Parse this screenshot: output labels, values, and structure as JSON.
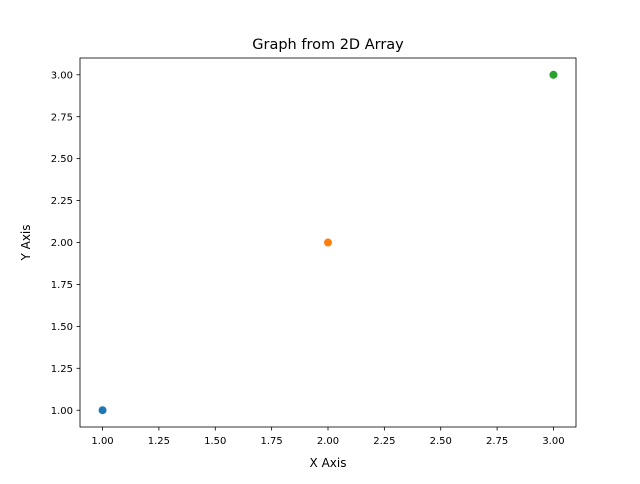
{
  "chart_data": {
    "type": "scatter",
    "title": "Graph from 2D Array",
    "xlabel": "X Axis",
    "ylabel": "Y Axis",
    "xlim": [
      0.9,
      3.1
    ],
    "ylim": [
      0.9,
      3.1
    ],
    "x_ticks": [
      "1.00",
      "1.25",
      "1.50",
      "1.75",
      "2.00",
      "2.25",
      "2.50",
      "2.75",
      "3.00"
    ],
    "y_ticks": [
      "1.00",
      "1.25",
      "1.50",
      "1.75",
      "2.00",
      "2.25",
      "2.50",
      "2.75",
      "3.00"
    ],
    "grid": false,
    "points": [
      {
        "x": 1,
        "y": 1,
        "color": "#1f77b4"
      },
      {
        "x": 2,
        "y": 2,
        "color": "#ff7f0e"
      },
      {
        "x": 3,
        "y": 3,
        "color": "#2ca02c"
      }
    ]
  }
}
